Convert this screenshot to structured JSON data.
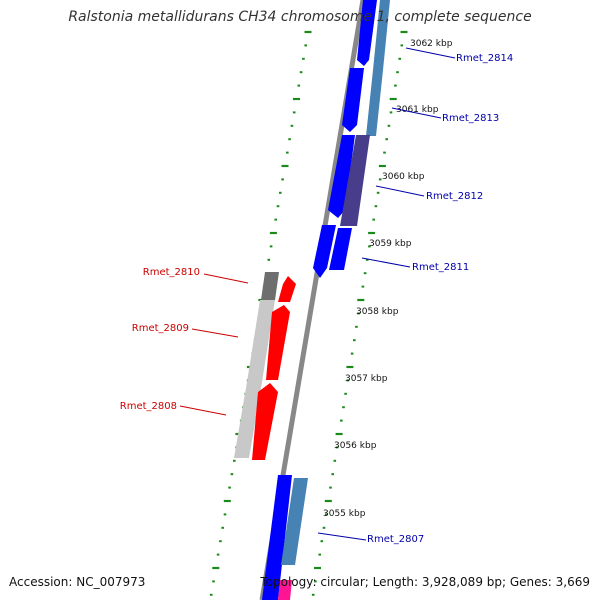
{
  "title": "Ralstonia metallidurans CH34 chromosome 1, complete sequence",
  "accession_text": "Accession: NC_007973",
  "topology_text": "Topology: circular; Length: 3,928,089 bp; Genes: 3,669",
  "colors": {
    "backbone": "#888888",
    "tick": "#1a8a1a",
    "plus_gene": "#0000ff",
    "plus_gene_steel": "#4682b4",
    "plus_gene_slate": "#483d8b",
    "minus_gene": "#ff0000",
    "minus_gene_gray": "#c8c8c8",
    "minus_gene_dark": "#6e6e6e",
    "plus_label": "#0000aa",
    "minus_label": "#cc0000"
  },
  "scale_labels": [
    "3062 kbp",
    "3061 kbp",
    "3060 kbp",
    "3059 kbp",
    "3058 kbp",
    "3057 kbp",
    "3056 kbp",
    "3055 kbp"
  ],
  "genes": [
    {
      "name": "Rmet_2814",
      "strand": "plus"
    },
    {
      "name": "Rmet_2813",
      "strand": "plus"
    },
    {
      "name": "Rmet_2812",
      "strand": "plus"
    },
    {
      "name": "Rmet_2811",
      "strand": "plus"
    },
    {
      "name": "Rmet_2810",
      "strand": "minus"
    },
    {
      "name": "Rmet_2809",
      "strand": "minus"
    },
    {
      "name": "Rmet_2808",
      "strand": "minus"
    },
    {
      "name": "Rmet_2807",
      "strand": "plus"
    }
  ]
}
